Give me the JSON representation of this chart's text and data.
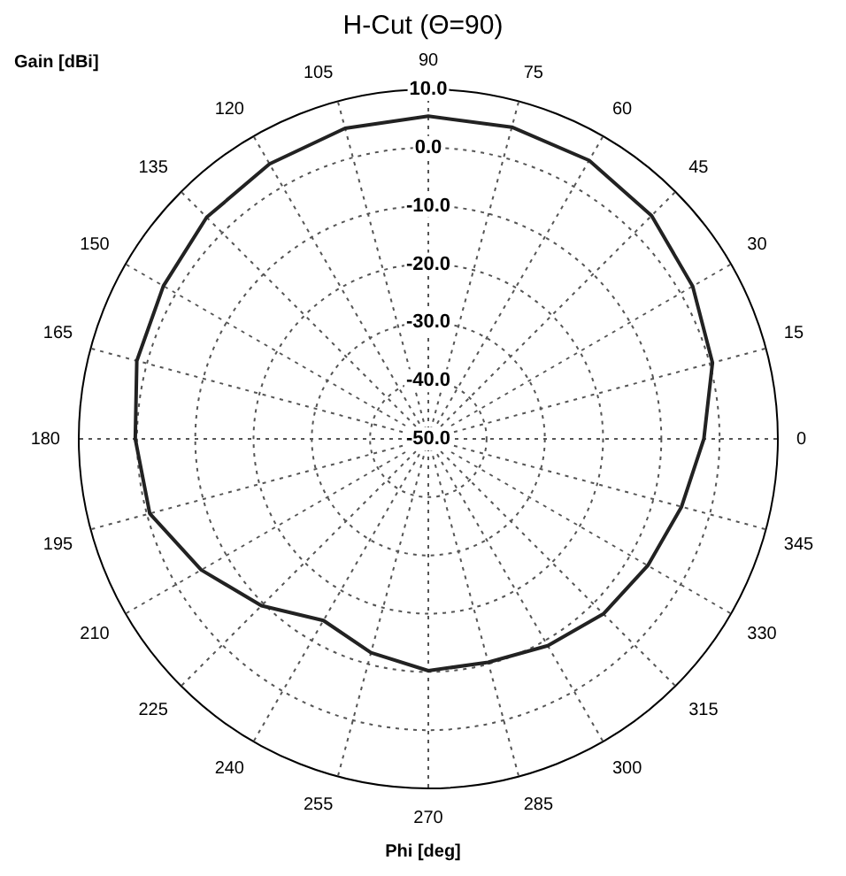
{
  "chart_data": {
    "type": "radar",
    "title": "H-Cut (Θ=90)",
    "xlabel": "Phi [deg]",
    "ylabel": "Gain [dBi]",
    "categories": [
      "90",
      "75",
      "60",
      "45",
      "30",
      "15",
      "0",
      "345",
      "330",
      "315",
      "300",
      "285",
      "270",
      "255",
      "240",
      "225",
      "210",
      "195",
      "180",
      "165",
      "150",
      "135",
      "120",
      "105"
    ],
    "series": [
      {
        "color": "#222222",
        "values": [
          5.4,
          5.4,
          5.2,
          4.2,
          2.4,
          0.5,
          -2.7,
          -5,
          -6.5,
          -7.5,
          -9,
          -10.3,
          -10.2,
          -12,
          -14,
          -9.5,
          -5,
          -0.5,
          0.3,
          1.8,
          2.5,
          3.8,
          4.5,
          5.2
        ]
      }
    ],
    "ylim": [
      -50,
      10
    ],
    "yticks": [
      {
        "value": -50,
        "label": "-50.0"
      },
      {
        "value": -40,
        "label": "-40.0"
      },
      {
        "value": -30,
        "label": "-30.0"
      },
      {
        "value": -20,
        "label": "-20.0"
      },
      {
        "value": -10,
        "label": "-10.0"
      },
      {
        "value": 0,
        "label": "0.0"
      },
      {
        "value": 10,
        "label": "10.0"
      }
    ],
    "grid": true,
    "marker": "none",
    "line_style": "solid"
  }
}
